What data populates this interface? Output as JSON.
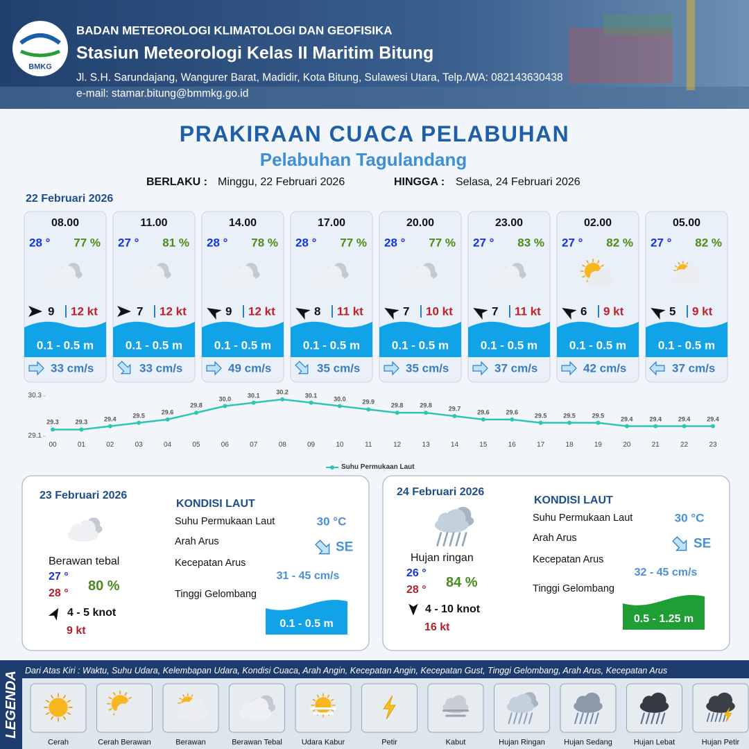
{
  "header": {
    "logo": "BMKG",
    "agency": "BADAN METEOROLOGI KLIMATOLOGI DAN GEOFISIKA",
    "station": "Stasiun Meteorologi Kelas II Maritim Bitung",
    "address": "Jl. S.H. Sarundajang, Wangurer Barat, Madidir, Kota Bitung, Sulawesi Utara, Telp./WA: 082143630438",
    "email": "e-mail: stamar.bitung@bmmkg.go.id"
  },
  "title": "PRAKIRAAN CUACA PELABUHAN",
  "subtitle": "Pelabuhan Tagulandang",
  "validity": {
    "from_label": "BERLAKU :",
    "from": "Minggu, 22 Februari 2026",
    "to_label": "HINGGA :",
    "to": "Selasa, 24 Februari 2026"
  },
  "day1": {
    "date": "22 Februari 2026",
    "wave_color": "#12a2e8",
    "slots": [
      {
        "time": "08.00",
        "temp": "28 °",
        "humidity": "77 %",
        "weather": "Berawan Tebal",
        "wind_deg": 0,
        "wind_speed": 9,
        "gust": "12 kt",
        "wave": "0.1 - 0.5 m",
        "current_deg": 0,
        "current": "33 cm/s"
      },
      {
        "time": "11.00",
        "temp": "27 °",
        "humidity": "81 %",
        "weather": "Berawan Tebal",
        "wind_deg": 0,
        "wind_speed": 7,
        "gust": "12 kt",
        "wave": "0.1 - 0.5 m",
        "current_deg": 45,
        "current": "33 cm/s"
      },
      {
        "time": "14.00",
        "temp": "28 °",
        "humidity": "78 %",
        "weather": "Berawan Tebal",
        "wind_deg": -150,
        "wind_speed": 9,
        "gust": "12 kt",
        "wave": "0.1 - 0.5 m",
        "current_deg": 0,
        "current": "49 cm/s"
      },
      {
        "time": "17.00",
        "temp": "28 °",
        "humidity": "77 %",
        "weather": "Berawan Tebal",
        "wind_deg": -150,
        "wind_speed": 8,
        "gust": "11 kt",
        "wave": "0.1 - 0.5 m",
        "current_deg": 45,
        "current": "35 cm/s"
      },
      {
        "time": "20.00",
        "temp": "28 °",
        "humidity": "77 %",
        "weather": "Berawan Tebal",
        "wind_deg": -150,
        "wind_speed": 7,
        "gust": "10 kt",
        "wave": "0.1 - 0.5 m",
        "current_deg": 0,
        "current": "35 cm/s"
      },
      {
        "time": "23.00",
        "temp": "27 °",
        "humidity": "83 %",
        "weather": "Berawan Tebal",
        "wind_deg": -150,
        "wind_speed": 7,
        "gust": "11 kt",
        "wave": "0.1 - 0.5 m",
        "current_deg": 0,
        "current": "37 cm/s"
      },
      {
        "time": "02.00",
        "temp": "27 °",
        "humidity": "82 %",
        "weather": "Cerah Berawan",
        "wind_deg": -150,
        "wind_speed": 6,
        "gust": "9 kt",
        "wave": "0.1 - 0.5 m",
        "current_deg": 0,
        "current": "42 cm/s"
      },
      {
        "time": "05.00",
        "temp": "27 °",
        "humidity": "82 %",
        "weather": "Berawan",
        "wind_deg": -150,
        "wind_speed": 5,
        "gust": "9 kt",
        "wave": "0.1 - 0.5 m",
        "current_deg": 180,
        "current": "37 cm/s"
      }
    ]
  },
  "chart_data": {
    "type": "line",
    "categories": [
      "00",
      "01",
      "02",
      "03",
      "04",
      "05",
      "06",
      "07",
      "08",
      "09",
      "10",
      "11",
      "12",
      "13",
      "14",
      "15",
      "16",
      "17",
      "18",
      "19",
      "20",
      "21",
      "22",
      "23"
    ],
    "series": [
      {
        "name": "Suhu Permukaan Laut",
        "color": "#2ec4b6",
        "values": [
          29.3,
          29.3,
          29.4,
          29.5,
          29.6,
          29.8,
          30.0,
          30.1,
          30.2,
          30.1,
          30.0,
          29.9,
          29.8,
          29.8,
          29.7,
          29.6,
          29.6,
          29.5,
          29.5,
          29.5,
          29.4,
          29.4,
          29.4,
          29.4
        ],
        "value_labels": [
          "29.3",
          "29.3",
          "29.4",
          "29.5",
          "29.6",
          "29.8",
          "30.0",
          "30.1",
          "30.2",
          "30.1",
          "30.0",
          "29.9",
          "29.8",
          "29.8",
          "29.7",
          "29.6",
          "29.6",
          "29.5",
          "29.5",
          "29.5",
          "29.4",
          "29.4",
          "29.4",
          "29.4"
        ]
      }
    ],
    "ylim": [
      29.1,
      30.3
    ],
    "yticks": [
      29.1,
      30.3
    ],
    "grid": false
  },
  "days": [
    {
      "date": "23 Februari 2026",
      "weather": "Berawan Tebal",
      "condition": "Berawan tebal",
      "temp_min": "27 °",
      "temp_max": "28 °",
      "humidity": "80 %",
      "wind_deg": -60,
      "wind": "4  - 5 knot",
      "gust": "9 kt",
      "sea_title": "KONDISI LAUT",
      "labels": [
        "Suhu Permukaan Laut",
        "Arah Arus",
        "Kecepatan Arus",
        "Tinggi Gelombang"
      ],
      "sst": "30 °C",
      "current_deg": 45,
      "current_dir": "SE",
      "current_speed": "31 - 45 cm/s",
      "wave": "0.1 - 0.5 m",
      "wave_color": "#12a2e8"
    },
    {
      "date": "24 Februari 2026",
      "weather": "Hujan Ringan",
      "condition": "Hujan ringan",
      "temp_min": "26 °",
      "temp_max": "28 °",
      "humidity": "84 %",
      "wind_deg": 90,
      "wind": "4  - 10 knot",
      "gust": "16 kt",
      "sea_title": "KONDISI LAUT",
      "labels": [
        "Suhu Permukaan Laut",
        "Arah Arus",
        "Kecepatan Arus",
        "Tinggi Gelombang"
      ],
      "sst": "30 °C",
      "current_deg": 45,
      "current_dir": "SE",
      "current_speed": "32 - 45 cm/s",
      "wave": "0.5 - 1.25 m",
      "wave_color": "#1f9e36"
    }
  ],
  "legend": {
    "title": "LEGENDA",
    "description": "Dari Atas Kiri : Waktu, Suhu Udara, Kelembapan Udara, Kondisi Cuaca, Arah Angin, Kecepatan Angin, Kecepatan Gust, Tinggi Gelombang, Arah Arus, Kecepatan Arus",
    "items": [
      "Cerah",
      "Cerah Berawan",
      "Berawan",
      "Berawan Tebal",
      "Udara Kabur",
      "Petir",
      "Kabut",
      "Hujan Ringan",
      "Hujan Sedang",
      "Hujan Lebat",
      "Hujan Petir"
    ]
  }
}
